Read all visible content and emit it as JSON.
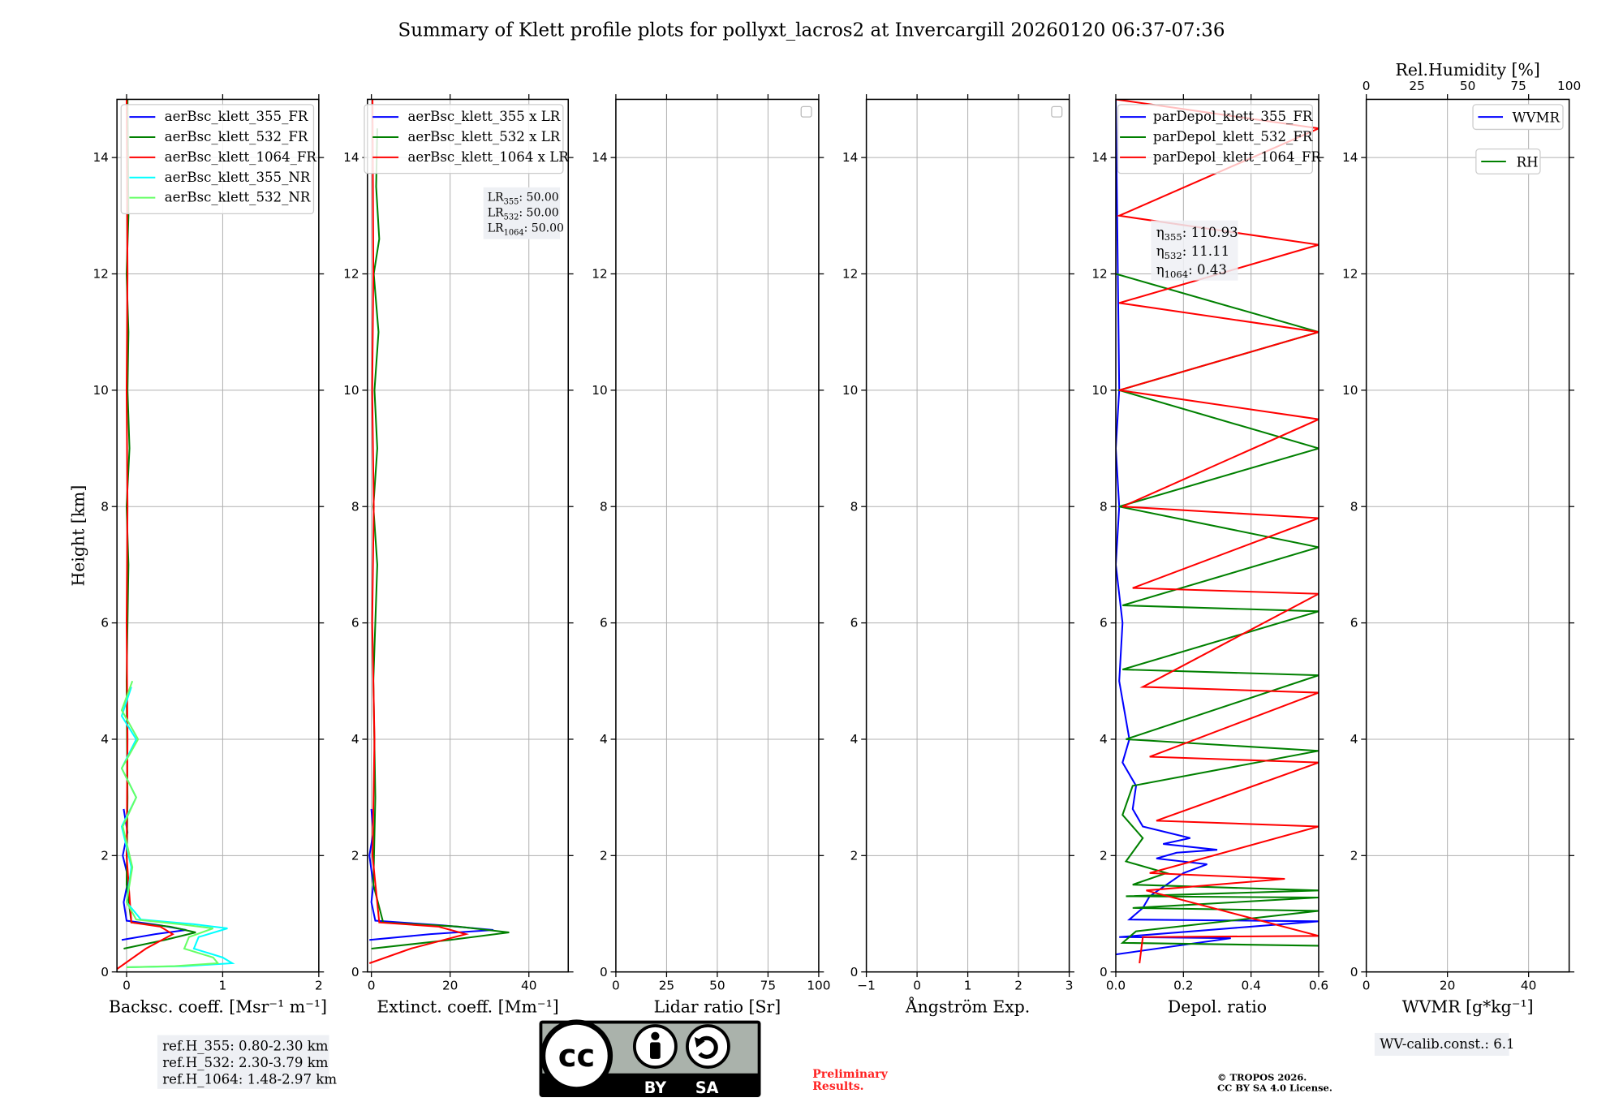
{
  "title": "Summary of Klett profile plots for pollyxt_lacros2 at Invercargill 20260120 06:37-07:36",
  "colors": {
    "blue": "#0000ff",
    "green": "#008000",
    "red": "#ff0000",
    "cyan": "#00ffff",
    "lightgreen": "#66ff66",
    "darkred": "#8b4513",
    "grid": "#b0b0b0",
    "preliminary": "#ff0000"
  },
  "chart_data": [
    {
      "type": "line",
      "name": "backscatter",
      "xlabel": "Backsc. coeff. [Msr⁻¹ m⁻¹]",
      "ylabel": "Height [km]",
      "xlim": [
        -0.1,
        2
      ],
      "ylim": [
        0,
        15
      ],
      "xticks": [
        0,
        1,
        2
      ],
      "yticks": [
        0,
        2,
        4,
        6,
        8,
        10,
        12,
        14
      ],
      "legend": [
        "aerBsc_klett_355_FR",
        "aerBsc_klett_532_FR",
        "aerBsc_klett_1064_FR",
        "aerBsc_klett_355_NR",
        "aerBsc_klett_532_NR"
      ],
      "legend_position": "top-right",
      "series": [
        {
          "name": "aerBsc_klett_355_FR",
          "color": "blue",
          "x": [
            -0.05,
            0.3,
            0.62,
            0.35,
            0.0,
            -0.03,
            0.02,
            -0.04,
            0.01,
            -0.03
          ],
          "y": [
            0.55,
            0.65,
            0.72,
            0.8,
            0.88,
            1.2,
            1.6,
            2.0,
            2.4,
            2.8
          ]
        },
        {
          "name": "aerBsc_klett_532_FR",
          "color": "green",
          "x": [
            -0.03,
            0.4,
            0.72,
            0.45,
            0.05,
            0.0,
            0.01,
            0.0,
            0.02,
            0.0,
            0.03,
            0.01,
            0.02,
            0.0,
            0.02,
            0.01
          ],
          "y": [
            0.4,
            0.55,
            0.68,
            0.78,
            0.85,
            1.5,
            3.0,
            5.0,
            7.0,
            8.0,
            9.0,
            10.0,
            11.0,
            12.0,
            13.0,
            15.0
          ]
        },
        {
          "name": "aerBsc_klett_1064_FR",
          "color": "red",
          "x": [
            -0.1,
            0.2,
            0.48,
            0.35,
            0.05,
            0.0,
            0.01,
            0.0,
            0.01,
            0.0,
            0.01,
            0.0
          ],
          "y": [
            0.05,
            0.4,
            0.65,
            0.78,
            0.85,
            2.0,
            4.0,
            6.0,
            8.0,
            10.0,
            12.0,
            15.0
          ]
        },
        {
          "name": "aerBsc_klett_355_NR",
          "color": "cyan",
          "x": [
            0.0,
            0.6,
            1.1,
            1.0,
            0.7,
            0.75,
            1.05,
            0.7,
            0.15,
            0.0,
            0.05,
            -0.05,
            0.1,
            -0.05,
            0.1,
            -0.05,
            0.05
          ],
          "y": [
            0.08,
            0.1,
            0.15,
            0.25,
            0.4,
            0.6,
            0.75,
            0.82,
            0.9,
            1.2,
            1.8,
            2.5,
            3.0,
            3.5,
            4.0,
            4.4,
            4.9
          ]
        },
        {
          "name": "aerBsc_klett_532_NR",
          "color": "lightgreen",
          "x": [
            0.0,
            0.5,
            0.95,
            0.9,
            0.6,
            0.65,
            0.9,
            0.55,
            0.1,
            0.0,
            0.06,
            -0.04,
            0.1,
            -0.05,
            0.12,
            -0.05,
            0.06
          ],
          "y": [
            0.08,
            0.1,
            0.15,
            0.25,
            0.4,
            0.6,
            0.75,
            0.82,
            0.9,
            1.2,
            1.8,
            2.5,
            3.0,
            3.5,
            4.0,
            4.5,
            5.0
          ]
        }
      ],
      "annotation": [
        "ref.H_355: 0.80-2.30 km",
        "ref.H_532: 2.30-3.79 km",
        "ref.H_1064: 1.48-2.97 km"
      ]
    },
    {
      "type": "line",
      "name": "extinction",
      "xlabel": "Extinct. coeff. [Mm⁻¹]",
      "xlim": [
        -1,
        50
      ],
      "ylim": [
        0,
        15
      ],
      "xticks": [
        0,
        20,
        40
      ],
      "yticks": [
        0,
        2,
        4,
        6,
        8,
        10,
        12,
        14
      ],
      "legend": [
        "aerBsc_klett_355 x LR",
        "aerBsc_klett_532 x LR",
        "aerBsc_klett_1064 x LR"
      ],
      "legend_position": "top-right",
      "series": [
        {
          "name": "aerBsc_klett_355 x LR",
          "color": "blue",
          "x": [
            -0.5,
            15,
            31,
            18,
            1,
            0,
            0.5,
            -0.5,
            0.5,
            0
          ],
          "y": [
            0.55,
            0.65,
            0.72,
            0.8,
            0.88,
            1.2,
            1.5,
            2.0,
            2.4,
            2.8
          ]
        },
        {
          "name": "aerBsc_klett_532 x LR",
          "color": "green",
          "x": [
            0,
            20,
            35,
            22,
            3,
            0.5,
            1,
            0.5,
            1.5,
            0.5,
            1.5,
            0.8,
            1.8,
            0.6,
            2,
            1.2,
            1.5
          ],
          "y": [
            0.4,
            0.55,
            0.68,
            0.78,
            0.85,
            1.5,
            3.0,
            5.0,
            7.0,
            8.0,
            9.0,
            10.0,
            11.0,
            12.0,
            12.6,
            13.5,
            14.5
          ]
        },
        {
          "name": "aerBsc_klett_1064 x LR",
          "color": "red",
          "x": [
            -0.5,
            10,
            24,
            17,
            2,
            0.3,
            0.8,
            0.2,
            0.6,
            0.2,
            0.5,
            0.3
          ],
          "y": [
            0.15,
            0.4,
            0.65,
            0.78,
            0.85,
            2.0,
            4.0,
            6.0,
            8.0,
            10.0,
            12.0,
            15.0
          ]
        }
      ],
      "annotation": [
        "LR355: 50.00",
        "LR532: 50.00",
        "LR1064: 50.00"
      ]
    },
    {
      "type": "line",
      "name": "lidar_ratio",
      "xlabel": "Lidar ratio [Sr]",
      "xlim": [
        0,
        100
      ],
      "ylim": [
        0,
        15
      ],
      "xticks": [
        0,
        25,
        50,
        75,
        100
      ],
      "yticks": [
        0,
        2,
        4,
        6,
        8,
        10,
        12,
        14
      ],
      "series": []
    },
    {
      "type": "line",
      "name": "angstrom",
      "xlabel": "Ångström Exp.",
      "xlim": [
        -1,
        3
      ],
      "ylim": [
        0,
        15
      ],
      "xticks": [
        -1,
        0,
        1,
        2,
        3
      ],
      "yticks": [
        0,
        2,
        4,
        6,
        8,
        10,
        12,
        14
      ],
      "series": []
    },
    {
      "type": "line",
      "name": "depol",
      "xlabel": "Depol. ratio",
      "xlim": [
        0,
        0.6
      ],
      "ylim": [
        0,
        15
      ],
      "xticks": [
        0.0,
        0.2,
        0.4,
        0.6
      ],
      "yticks": [
        0,
        2,
        4,
        6,
        8,
        10,
        12,
        14
      ],
      "legend": [
        "parDepol_klett_355_FR",
        "parDepol_klett_532_FR",
        "parDepol_klett_1064_FR"
      ],
      "legend_position": "top-left",
      "series": [
        {
          "name": "parDepol_klett_355_FR",
          "color": "blue",
          "x": [
            0.0,
            0.34,
            0.01,
            0.6,
            0.04,
            0.08,
            0.1,
            0.15,
            0.2,
            0.27,
            0.12,
            0.18,
            0.3,
            0.14,
            0.22,
            0.08,
            0.05,
            0.06,
            0.02,
            0.04,
            0.01,
            0.02,
            0.0,
            0.01,
            0.0,
            0.01,
            0.0
          ],
          "y": [
            0.3,
            0.58,
            0.6,
            0.87,
            0.9,
            1.1,
            1.3,
            1.5,
            1.7,
            1.85,
            1.95,
            2.05,
            2.1,
            2.2,
            2.3,
            2.5,
            2.8,
            3.2,
            3.6,
            4.0,
            5.0,
            6.0,
            7.0,
            8.0,
            9.0,
            10.0,
            15.0
          ]
        },
        {
          "name": "parDepol_klett_532_FR",
          "color": "green",
          "x": [
            0.6,
            0.02,
            0.06,
            0.6,
            0.05,
            0.6,
            0.03,
            0.6,
            0.05,
            0.15,
            0.03,
            0.08,
            0.02,
            0.05,
            0.6,
            0.03,
            0.6,
            0.02,
            0.6,
            0.02,
            0.6,
            0.01,
            0.6,
            0.01,
            0.6,
            0.0
          ],
          "y": [
            0.45,
            0.5,
            0.7,
            1.05,
            1.1,
            1.28,
            1.3,
            1.4,
            1.5,
            1.7,
            1.9,
            2.3,
            2.7,
            3.2,
            3.8,
            4.0,
            5.1,
            5.2,
            6.2,
            6.3,
            7.3,
            8.0,
            9.0,
            10.0,
            11.0,
            12.0
          ]
        },
        {
          "name": "parDepol_klett_1064_FR",
          "color": "red",
          "x": [
            0.07,
            0.08,
            0.6,
            0.09,
            0.5,
            0.1,
            0.6,
            0.12,
            0.6,
            0.1,
            0.6,
            0.08,
            0.6,
            0.05,
            0.6,
            0.02,
            0.6,
            0.01,
            0.6,
            0.01,
            0.6,
            0.01,
            0.6,
            0.0
          ],
          "y": [
            0.15,
            0.6,
            0.62,
            1.4,
            1.6,
            1.7,
            2.5,
            2.6,
            3.6,
            3.7,
            4.8,
            4.9,
            6.5,
            6.6,
            7.8,
            8.0,
            9.5,
            10.0,
            11.0,
            11.5,
            12.5,
            13.0,
            14.5,
            15.0
          ]
        }
      ],
      "annotation": [
        "η355: 110.93",
        "η532: 11.11",
        "η1064: 0.43"
      ]
    },
    {
      "type": "line",
      "name": "wvmr",
      "xlabel": "WVMR [g*kg⁻¹]",
      "top_xlabel": "Rel.Humidity [%]",
      "xlim": [
        0,
        50
      ],
      "ylim": [
        0,
        15
      ],
      "xticks": [
        0,
        20,
        40
      ],
      "top_xticks": [
        0,
        25,
        50,
        75,
        100
      ],
      "yticks": [
        0,
        2,
        4,
        6,
        8,
        10,
        12,
        14
      ],
      "legend": [
        "WVMR",
        "RH"
      ],
      "series": [],
      "annotation": [
        "WV-calib.const.: 6.1"
      ]
    }
  ],
  "footer": {
    "license_badge": [
      "cc",
      "BY",
      "SA"
    ],
    "preliminary": [
      "Preliminary",
      "Results."
    ],
    "copyright": [
      "© TROPOS 2026.",
      "CC BY SA 4.0 License."
    ]
  }
}
